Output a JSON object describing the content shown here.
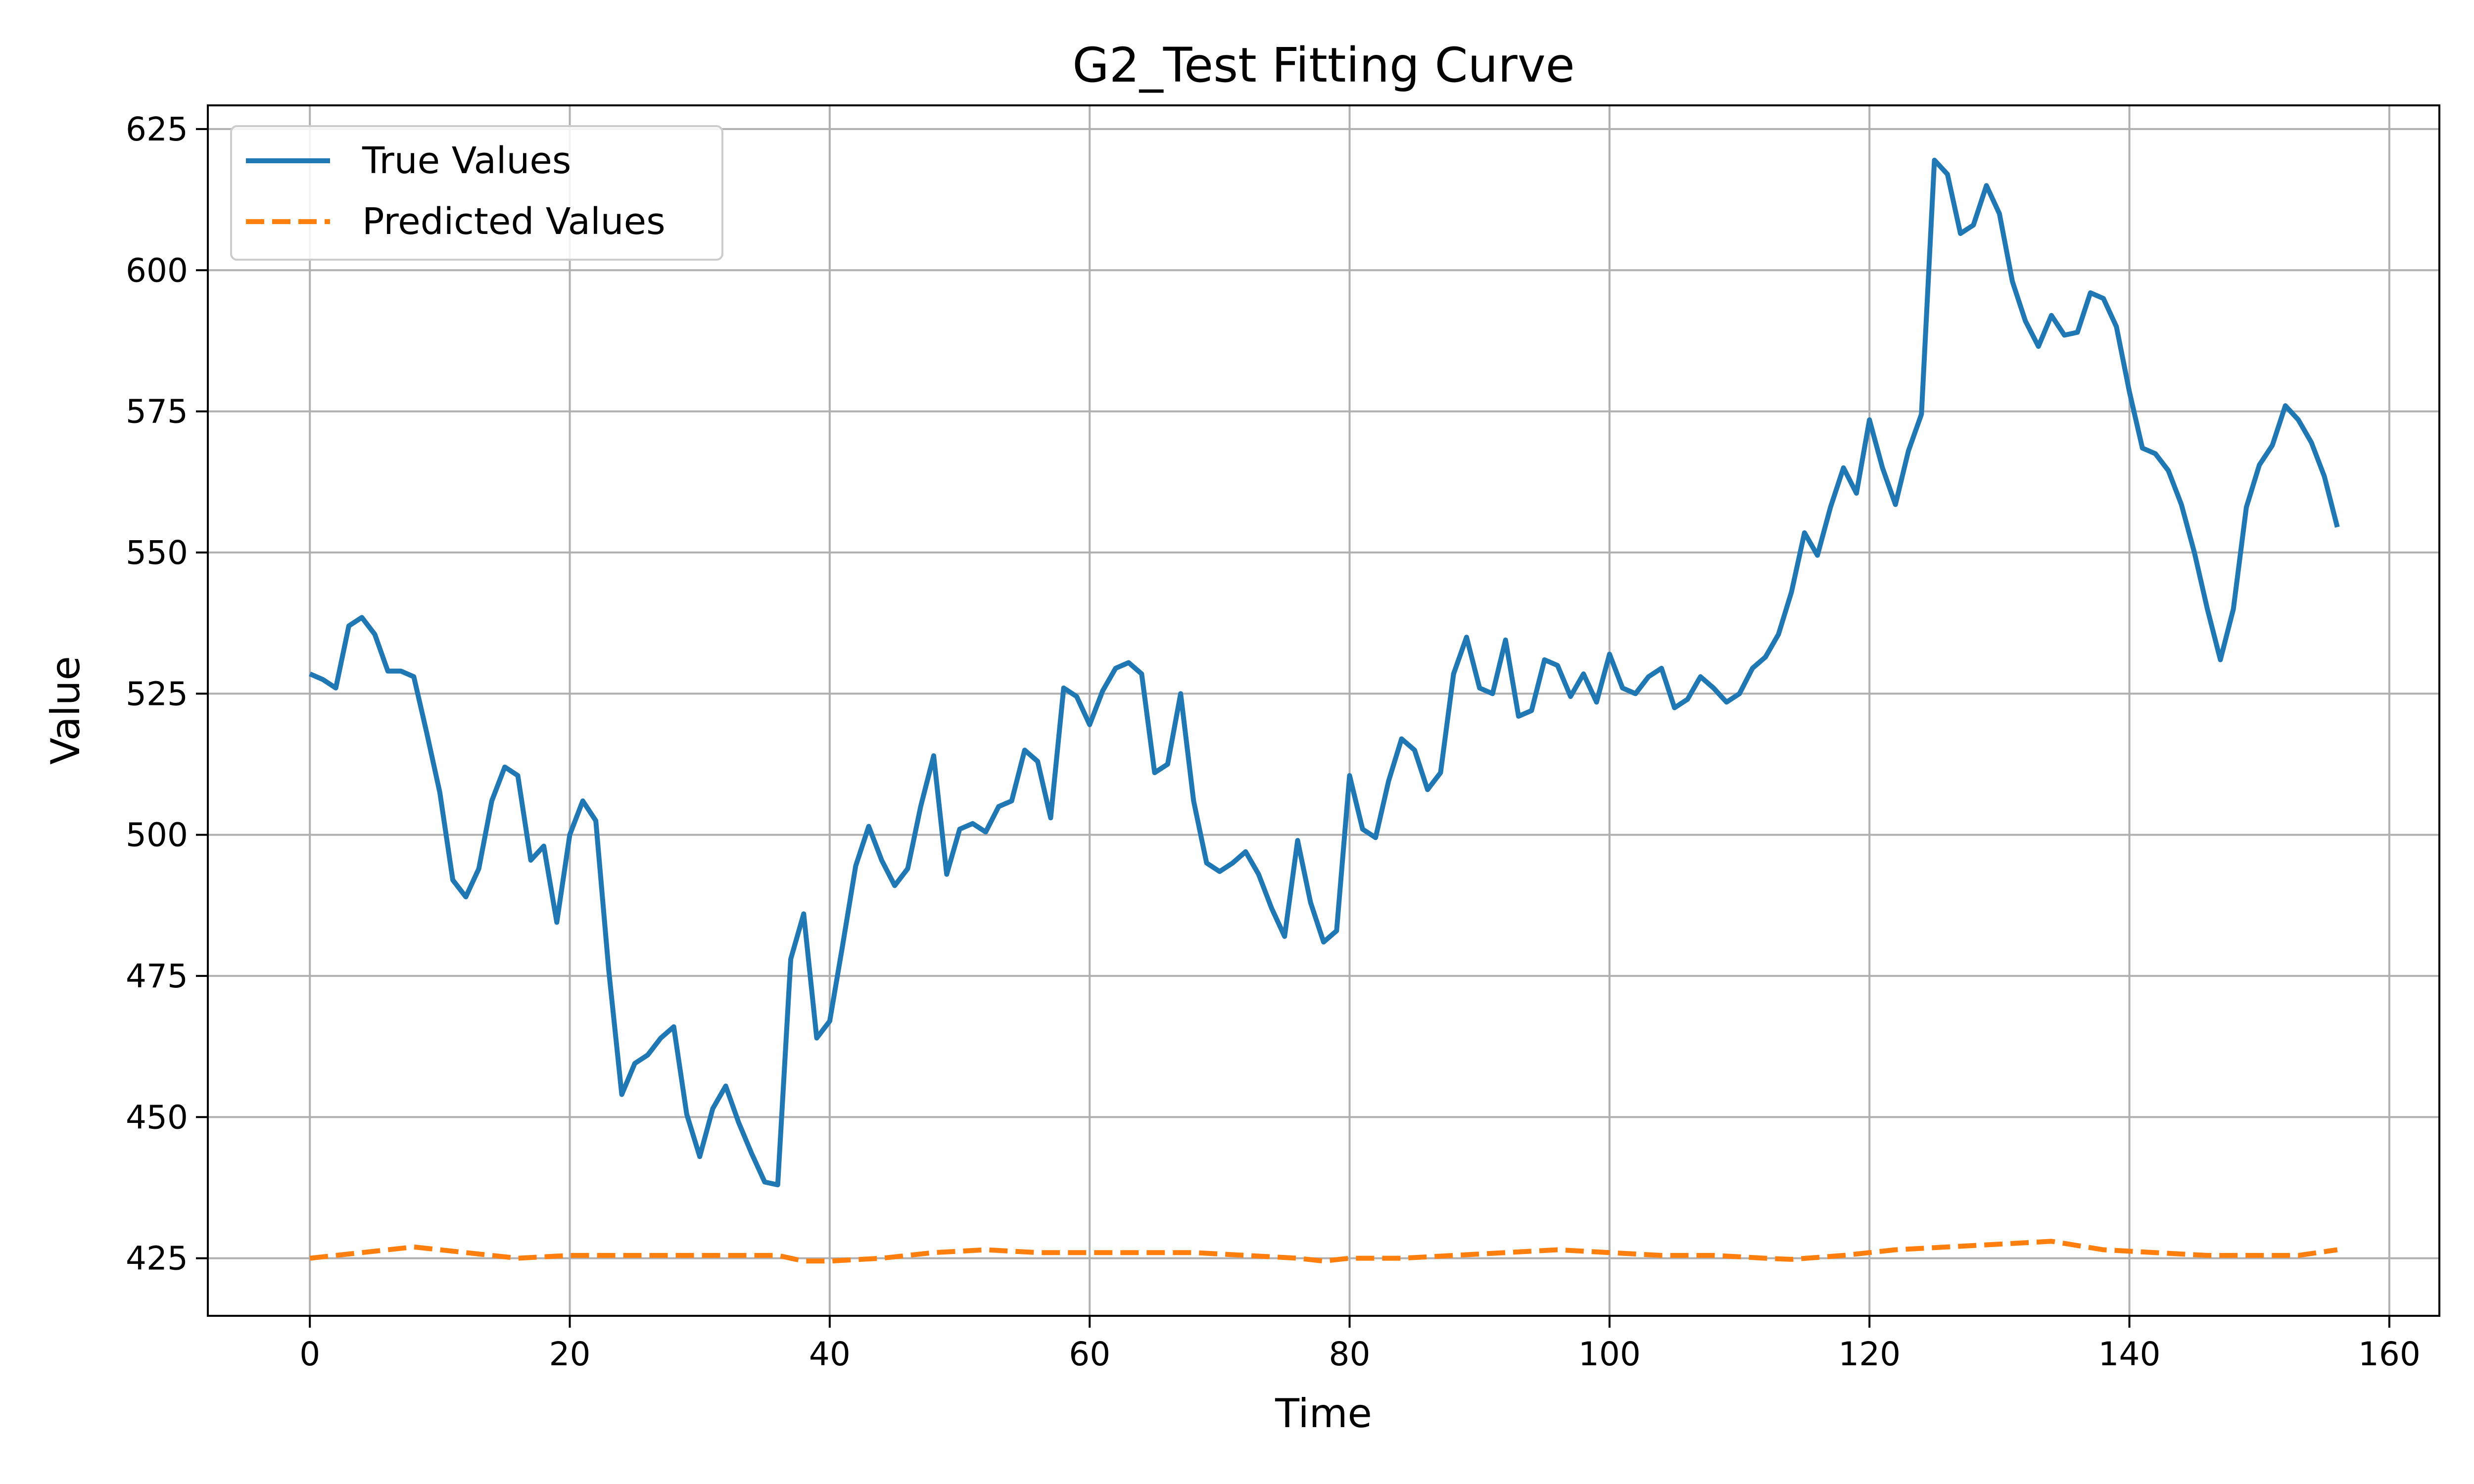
{
  "chart_data": {
    "type": "line",
    "title": "G2_Test Fitting Curve",
    "xlabel": "Time",
    "ylabel": "Value",
    "xlim": [
      -7.85,
      163.85
    ],
    "ylim": [
      414.8,
      629.2
    ],
    "xticks": [
      0,
      20,
      40,
      60,
      80,
      100,
      120,
      140,
      160
    ],
    "yticks": [
      425,
      450,
      475,
      500,
      525,
      550,
      575,
      600,
      625
    ],
    "grid": true,
    "legend_position": "top-left",
    "series": [
      {
        "name": "True Values",
        "color": "#1f77b4",
        "style": "solid",
        "x": [
          0,
          1,
          2,
          3,
          4,
          5,
          6,
          7,
          8,
          9,
          10,
          11,
          12,
          13,
          14,
          15,
          16,
          17,
          18,
          19,
          20,
          21,
          22,
          23,
          24,
          25,
          26,
          27,
          28,
          29,
          30,
          31,
          32,
          33,
          34,
          35,
          36,
          37,
          38,
          39,
          40,
          41,
          42,
          43,
          44,
          45,
          46,
          47,
          48,
          49,
          50,
          51,
          52,
          53,
          54,
          55,
          56,
          57,
          58,
          59,
          60,
          61,
          62,
          63,
          64,
          65,
          66,
          67,
          68,
          69,
          70,
          71,
          72,
          73,
          74,
          75,
          76,
          77,
          78,
          79,
          80,
          81,
          82,
          83,
          84,
          85,
          86,
          87,
          88,
          89,
          90,
          91,
          92,
          93,
          94,
          95,
          96,
          97,
          98,
          99,
          100,
          101,
          102,
          103,
          104,
          105,
          106,
          107,
          108,
          109,
          110,
          111,
          112,
          113,
          114,
          115,
          116,
          117,
          118,
          119,
          120,
          121,
          122,
          123,
          124,
          125,
          126,
          127,
          128,
          129,
          130,
          131,
          132,
          133,
          134,
          135,
          136,
          137,
          138,
          139,
          140,
          141,
          142,
          143,
          144,
          145,
          146,
          147,
          148,
          149,
          150,
          151,
          152,
          153,
          154,
          155,
          156
        ],
        "values": [
          528.5,
          527.5,
          526,
          537,
          538.5,
          535.5,
          529,
          529,
          528,
          518,
          507.5,
          492,
          489,
          494,
          506,
          512,
          510.5,
          495.5,
          498,
          484.5,
          500,
          506,
          502.5,
          476,
          454,
          459.5,
          461,
          464,
          466,
          450.5,
          443,
          451.5,
          455.5,
          449,
          443.5,
          438.5,
          438,
          478,
          486,
          464,
          467,
          480.5,
          494.5,
          501.5,
          495.5,
          491,
          494,
          505,
          514,
          493,
          501,
          502,
          500.5,
          505,
          506,
          515,
          513,
          503,
          526,
          524.5,
          519.5,
          525.5,
          529.5,
          530.5,
          528.5,
          511,
          512.5,
          525,
          506,
          495,
          493.5,
          495,
          497,
          493,
          487,
          482,
          499,
          488,
          481,
          483,
          510.5,
          501,
          499.5,
          509.5,
          517,
          515,
          508,
          511,
          528.5,
          535,
          526,
          525,
          534.5,
          521,
          522,
          531,
          530,
          524.5,
          528.5,
          523.5,
          532,
          526,
          525,
          528,
          529.5,
          522.5,
          524,
          528,
          526,
          523.5,
          525,
          529.5,
          531.5,
          535.5,
          543,
          553.5,
          549.5,
          558,
          565,
          560.5,
          573.5,
          565,
          558.5,
          568,
          574.5,
          619.5,
          617,
          606.5,
          608,
          615,
          610,
          598,
          591,
          586.5,
          592,
          588.5,
          589,
          596,
          595,
          590,
          578.5,
          568.5,
          567.5,
          564.5,
          558.5,
          550,
          540,
          531,
          540,
          558,
          565.5,
          569,
          576,
          573.5,
          569.5,
          563.5,
          554.5
        ]
      },
      {
        "name": "Predicted Values",
        "color": "#ff7f0e",
        "style": "dashed",
        "x": [
          0,
          4,
          8,
          12,
          16,
          20,
          24,
          28,
          32,
          36,
          38,
          40,
          44,
          48,
          52,
          56,
          60,
          64,
          68,
          72,
          76,
          78,
          80,
          84,
          88,
          92,
          96,
          100,
          104,
          108,
          112,
          114,
          118,
          122,
          126,
          130,
          134,
          138,
          142,
          146,
          150,
          153,
          156
        ],
        "values": [
          425,
          426,
          427,
          426,
          425,
          425.5,
          425.5,
          425.5,
          425.5,
          425.5,
          424.5,
          424.5,
          425,
          426,
          426.5,
          426,
          426,
          426,
          426,
          425.5,
          425,
          424.5,
          425,
          425,
          425.5,
          426,
          426.5,
          426,
          425.5,
          425.5,
          425,
          424.8,
          425.5,
          426.5,
          427,
          427.5,
          428,
          426.5,
          426,
          425.5,
          425.5,
          425.5,
          426.5
        ]
      }
    ]
  }
}
